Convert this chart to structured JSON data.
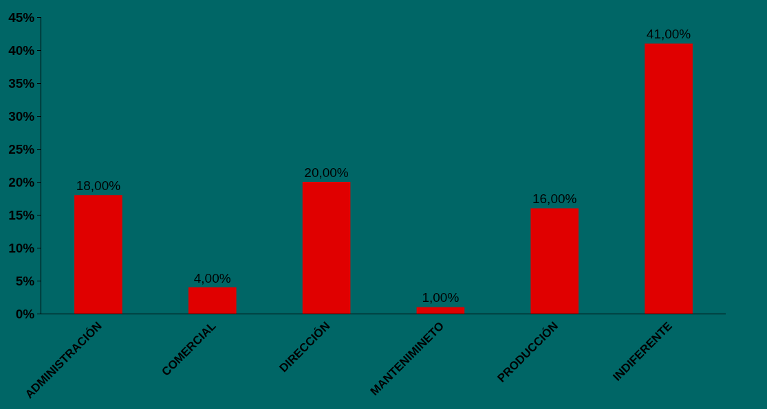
{
  "chart_data": {
    "type": "bar",
    "categories": [
      "ADMINISTRACIÓN",
      "COMERCIAL",
      "DIRECCIÓN",
      "MANTENIMINETO",
      "PRODUCCIÓN",
      "INDIFERENTE"
    ],
    "values": [
      18,
      4,
      20,
      1,
      16,
      41
    ],
    "value_labels": [
      "18,00%",
      "4,00%",
      "20,00%",
      "1,00%",
      "16,00%",
      "41,00%"
    ],
    "color": "#e00000",
    "ylim": [
      0,
      45
    ],
    "yticks": [
      {
        "value": 0,
        "label": "0%"
      },
      {
        "value": 5,
        "label": "5%"
      },
      {
        "value": 10,
        "label": "10%"
      },
      {
        "value": 15,
        "label": "15%"
      },
      {
        "value": 20,
        "label": "20%"
      },
      {
        "value": 25,
        "label": "25%"
      },
      {
        "value": 30,
        "label": "30%"
      },
      {
        "value": 35,
        "label": "35%"
      },
      {
        "value": 40,
        "label": "40%"
      },
      {
        "value": 45,
        "label": "45%"
      }
    ],
    "grid": false,
    "legend": false
  }
}
